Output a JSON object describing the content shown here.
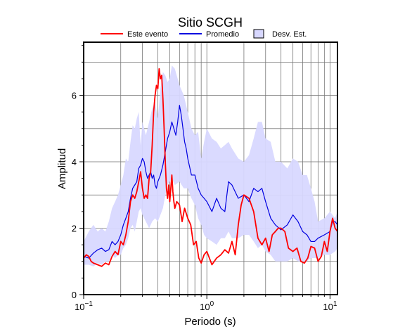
{
  "chart_data": {
    "type": "line",
    "title": "Sitio SCGH",
    "xlabel": "Periodo (s)",
    "ylabel": "Amplitud",
    "xscale": "log",
    "xlim": [
      0.1,
      11.5
    ],
    "ylim": [
      0,
      7.6
    ],
    "xticks": [
      {
        "value": 0.1,
        "base": "10",
        "exp": "−1"
      },
      {
        "value": 1,
        "base": "10",
        "exp": "0"
      },
      {
        "value": 10,
        "base": "10",
        "exp": "1"
      }
    ],
    "yticks": [
      0,
      2,
      4,
      6
    ],
    "grid": true,
    "legend_position": "top",
    "legend": [
      {
        "label": "Este evento",
        "type": "line",
        "color": "#ff0000"
      },
      {
        "label": "Promedio",
        "type": "line",
        "color": "#0000e0"
      },
      {
        "label": "Desv. Est.",
        "type": "area",
        "color": "#d8d8ff"
      }
    ],
    "series": [
      {
        "name": "Este evento",
        "color": "#ff0000",
        "x": [
          0.1,
          0.105,
          0.11,
          0.115,
          0.12,
          0.13,
          0.14,
          0.15,
          0.16,
          0.17,
          0.18,
          0.19,
          0.2,
          0.21,
          0.22,
          0.23,
          0.24,
          0.25,
          0.26,
          0.27,
          0.28,
          0.29,
          0.3,
          0.31,
          0.32,
          0.33,
          0.34,
          0.35,
          0.36,
          0.37,
          0.38,
          0.39,
          0.4,
          0.41,
          0.42,
          0.43,
          0.44,
          0.45,
          0.46,
          0.47,
          0.48,
          0.49,
          0.5,
          0.51,
          0.52,
          0.53,
          0.54,
          0.55,
          0.57,
          0.6,
          0.63,
          0.66,
          0.7,
          0.74,
          0.78,
          0.82,
          0.86,
          0.9,
          0.95,
          1.0,
          1.1,
          1.2,
          1.3,
          1.4,
          1.5,
          1.6,
          1.7,
          1.8,
          1.9,
          2.0,
          2.2,
          2.4,
          2.6,
          2.8,
          3.0,
          3.2,
          3.4,
          3.6,
          3.8,
          4.0,
          4.3,
          4.6,
          5.0,
          5.4,
          5.8,
          6.2,
          6.6,
          7.0,
          7.5,
          8.0,
          8.5,
          9.0,
          9.5,
          10.0,
          10.5,
          11.0,
          11.5
        ],
        "y": [
          1.1,
          1.2,
          1.15,
          1.0,
          0.95,
          0.9,
          0.85,
          0.95,
          0.9,
          1.15,
          1.3,
          1.2,
          1.6,
          1.5,
          1.8,
          2.2,
          2.8,
          3.0,
          2.9,
          3.1,
          3.4,
          3.7,
          3.2,
          2.9,
          3.0,
          2.9,
          3.5,
          3.7,
          4.5,
          5.5,
          6.0,
          6.3,
          6.2,
          6.8,
          6.5,
          6.6,
          5.9,
          5.0,
          4.0,
          3.2,
          2.9,
          3.3,
          2.8,
          3.2,
          3.6,
          3.1,
          2.8,
          2.6,
          2.8,
          2.7,
          2.2,
          2.6,
          2.3,
          2.1,
          1.5,
          1.6,
          1.1,
          0.95,
          1.2,
          1.3,
          0.9,
          1.1,
          1.2,
          1.35,
          1.25,
          1.6,
          1.2,
          2.1,
          2.7,
          3.0,
          2.9,
          2.5,
          1.7,
          1.5,
          1.7,
          1.3,
          1.8,
          1.9,
          2.0,
          2.0,
          1.9,
          1.4,
          1.3,
          1.4,
          1.0,
          0.95,
          1.1,
          1.45,
          1.4,
          1.0,
          1.15,
          1.6,
          1.3,
          1.9,
          2.3,
          2.0,
          1.9
        ]
      },
      {
        "name": "Promedio",
        "color": "#0000e0",
        "x": [
          0.1,
          0.11,
          0.12,
          0.13,
          0.14,
          0.15,
          0.16,
          0.17,
          0.18,
          0.19,
          0.2,
          0.21,
          0.22,
          0.23,
          0.24,
          0.25,
          0.26,
          0.27,
          0.28,
          0.29,
          0.3,
          0.31,
          0.32,
          0.33,
          0.34,
          0.35,
          0.36,
          0.37,
          0.38,
          0.39,
          0.4,
          0.42,
          0.44,
          0.46,
          0.48,
          0.5,
          0.52,
          0.54,
          0.56,
          0.58,
          0.6,
          0.62,
          0.64,
          0.66,
          0.68,
          0.7,
          0.75,
          0.8,
          0.85,
          0.9,
          0.95,
          1.0,
          1.1,
          1.2,
          1.3,
          1.4,
          1.5,
          1.6,
          1.8,
          2.0,
          2.2,
          2.4,
          2.6,
          2.8,
          3.0,
          3.3,
          3.6,
          4.0,
          4.5,
          5.0,
          5.5,
          6.0,
          6.5,
          7.0,
          7.5,
          8.0,
          9.0,
          10.0,
          10.5,
          11.0,
          11.5
        ],
        "y": [
          1.15,
          1.1,
          1.25,
          1.35,
          1.4,
          1.3,
          1.35,
          1.6,
          1.5,
          1.6,
          1.8,
          2.1,
          2.3,
          2.5,
          2.9,
          3.2,
          3.3,
          3.4,
          3.8,
          3.9,
          4.1,
          4.0,
          3.7,
          3.5,
          3.6,
          3.7,
          3.5,
          3.6,
          3.3,
          3.2,
          3.4,
          3.6,
          3.9,
          4.3,
          4.7,
          4.9,
          5.2,
          5.0,
          4.8,
          5.2,
          5.7,
          5.4,
          5.0,
          4.6,
          4.4,
          4.1,
          3.6,
          3.6,
          3.2,
          3.0,
          2.9,
          2.8,
          2.5,
          2.9,
          2.6,
          2.5,
          3.4,
          3.3,
          2.9,
          3.0,
          2.8,
          3.2,
          3.1,
          3.2,
          2.8,
          2.3,
          2.1,
          1.95,
          2.1,
          2.4,
          2.2,
          1.9,
          1.8,
          1.6,
          1.6,
          1.7,
          1.8,
          1.9,
          2.2,
          2.2,
          2.1
        ]
      }
    ],
    "band": {
      "name": "Desv. Est.",
      "color": "#d8d8ff",
      "x": [
        0.1,
        0.11,
        0.12,
        0.13,
        0.14,
        0.15,
        0.16,
        0.17,
        0.18,
        0.19,
        0.2,
        0.21,
        0.22,
        0.23,
        0.24,
        0.25,
        0.26,
        0.27,
        0.28,
        0.29,
        0.3,
        0.32,
        0.34,
        0.36,
        0.38,
        0.4,
        0.42,
        0.44,
        0.46,
        0.48,
        0.5,
        0.52,
        0.55,
        0.6,
        0.65,
        0.7,
        0.75,
        0.8,
        0.85,
        0.9,
        0.95,
        1.0,
        1.1,
        1.2,
        1.3,
        1.4,
        1.5,
        1.6,
        1.8,
        2.0,
        2.2,
        2.4,
        2.6,
        2.8,
        3.0,
        3.3,
        3.6,
        4.0,
        4.5,
        5.0,
        5.5,
        6.0,
        6.5,
        7.0,
        7.5,
        8.0,
        9.0,
        10.0,
        11.0,
        11.5
      ],
      "upper": [
        1.6,
        1.9,
        2.1,
        1.9,
        2.0,
        1.9,
        2.2,
        2.6,
        2.8,
        3.0,
        3.3,
        3.6,
        4.1,
        4.0,
        4.6,
        5.1,
        5.0,
        5.3,
        5.5,
        4.5,
        5.2,
        4.8,
        5.2,
        5.6,
        5.8,
        5.3,
        6.2,
        6.7,
        6.6,
        6.4,
        6.5,
        6.9,
        6.8,
        6.3,
        6.0,
        5.5,
        5.0,
        4.8,
        4.9,
        4.1,
        4.6,
        5.0,
        4.7,
        4.6,
        4.4,
        4.5,
        4.6,
        4.4,
        4.1,
        4.0,
        4.2,
        4.7,
        5.2,
        5.2,
        4.7,
        4.6,
        4.0,
        4.0,
        3.8,
        4.1,
        4.0,
        3.6,
        3.6,
        3.2,
        2.8,
        2.2,
        2.3,
        2.5,
        2.3,
        2.5
      ],
      "lower": [
        0.9,
        0.9,
        0.85,
        0.95,
        0.9,
        1.0,
        1.0,
        1.2,
        1.1,
        1.2,
        1.2,
        1.4,
        1.5,
        1.7,
        2.0,
        2.1,
        1.9,
        2.2,
        2.5,
        2.6,
        2.4,
        2.2,
        2.0,
        2.2,
        2.3,
        2.2,
        2.4,
        2.6,
        3.0,
        3.3,
        3.4,
        3.5,
        3.3,
        3.4,
        3.2,
        3.2,
        2.9,
        2.7,
        2.3,
        2.1,
        1.8,
        1.7,
        1.6,
        1.5,
        1.7,
        1.7,
        1.9,
        1.7,
        1.7,
        1.8,
        1.8,
        1.6,
        1.4,
        1.5,
        1.3,
        1.2,
        1.0,
        1.0,
        1.0,
        1.1,
        1.0,
        1.0,
        1.0,
        1.1,
        1.1,
        1.1,
        1.2,
        1.2,
        1.3,
        1.4
      ]
    }
  }
}
